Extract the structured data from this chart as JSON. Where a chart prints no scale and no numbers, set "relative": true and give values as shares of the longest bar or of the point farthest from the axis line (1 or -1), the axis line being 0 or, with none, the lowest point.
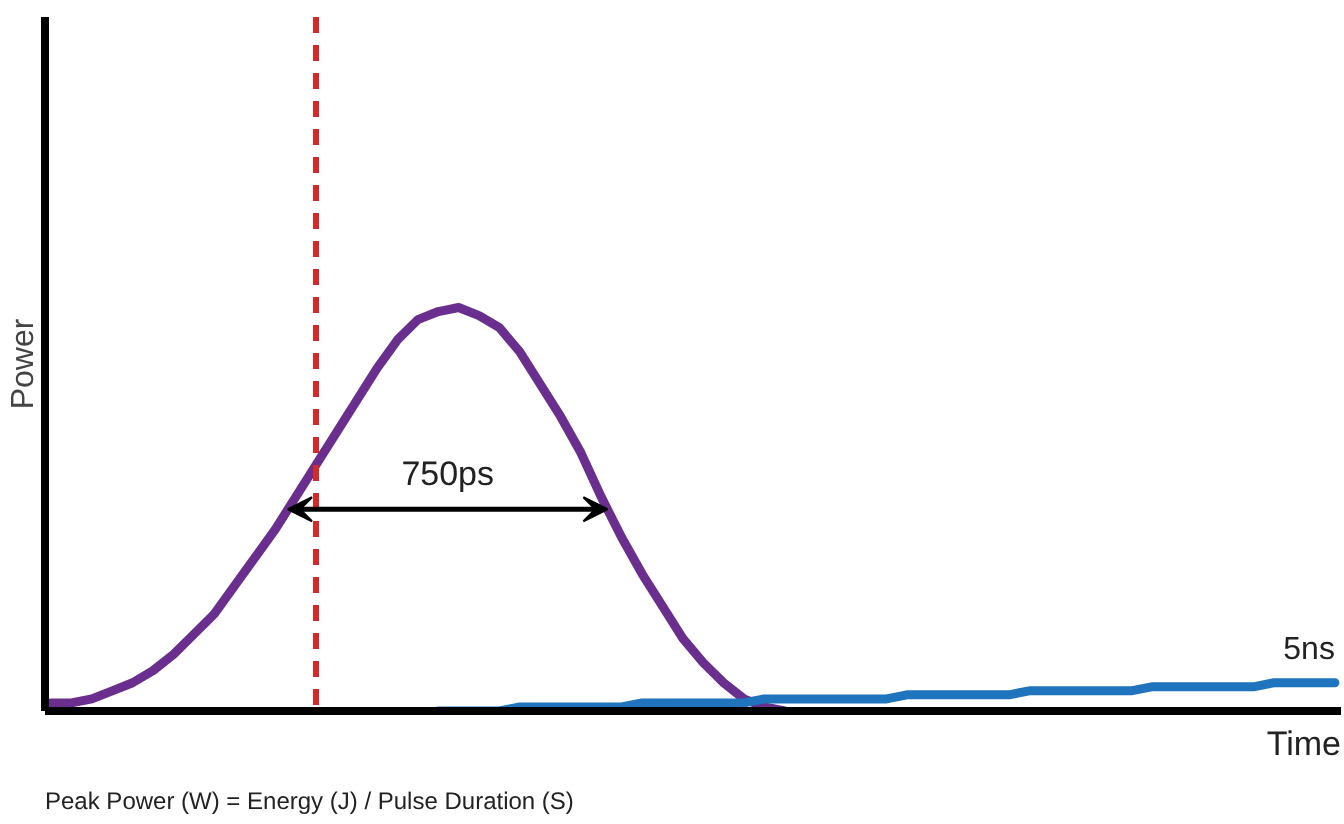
{
  "chart_data": {
    "type": "line",
    "relative": true,
    "xlabel": "Time",
    "ylabel": "Power",
    "categories": [
      null,
      null,
      null,
      null,
      null,
      null,
      null,
      null,
      null,
      null,
      null,
      null,
      null,
      null,
      null,
      null,
      null,
      null,
      null,
      null,
      null,
      null,
      null,
      null,
      null,
      null,
      null,
      null,
      null,
      null,
      null,
      null,
      null,
      null,
      null,
      null,
      null,
      null,
      null,
      null,
      null,
      null,
      null,
      null,
      null,
      null,
      null,
      null,
      null,
      null,
      null,
      null,
      null,
      null,
      null,
      null,
      null,
      null,
      null,
      null,
      null,
      null,
      null,
      null
    ],
    "series": [
      {
        "color": "#6a2e8f",
        "values": [
          0.02,
          0.02,
          0.03,
          0.05,
          0.07,
          0.1,
          0.14,
          0.19,
          0.24,
          0.31,
          0.38,
          0.45,
          0.53,
          0.61,
          0.69,
          0.77,
          0.85,
          0.92,
          0.97,
          0.99,
          1,
          0.98,
          0.95,
          0.89,
          0.81,
          0.73,
          0.64,
          0.53,
          0.43,
          0.34,
          0.26,
          0.18,
          0.12,
          0.07,
          0.03,
          0.01,
          0,
          null,
          null,
          null,
          null,
          null,
          null,
          null,
          null,
          null,
          null,
          null,
          null,
          null,
          null,
          null,
          null,
          null,
          null,
          null,
          null,
          null,
          null,
          null,
          null,
          null,
          null,
          null
        ]
      },
      {
        "color": "#1f74bd",
        "values": [
          null,
          null,
          null,
          null,
          null,
          null,
          null,
          null,
          null,
          null,
          null,
          null,
          null,
          null,
          null,
          null,
          null,
          null,
          null,
          0,
          0,
          0,
          0,
          0.01,
          0.01,
          0.01,
          0.01,
          0.01,
          0.01,
          0.02,
          0.02,
          0.02,
          0.02,
          0.02,
          0.02,
          0.03,
          0.03,
          0.03,
          0.03,
          0.03,
          0.03,
          0.03,
          0.04,
          0.04,
          0.04,
          0.04,
          0.04,
          0.04,
          0.05,
          0.05,
          0.05,
          0.05,
          0.05,
          0.05,
          0.06,
          0.06,
          0.06,
          0.06,
          0.06,
          0.06,
          0.07,
          0.07,
          0.07,
          0.07
        ]
      }
    ],
    "annotations": [
      "750ps",
      "5ns",
      "Peak Power (W) = Energy (J) / Pulse Duration (S)"
    ]
  }
}
